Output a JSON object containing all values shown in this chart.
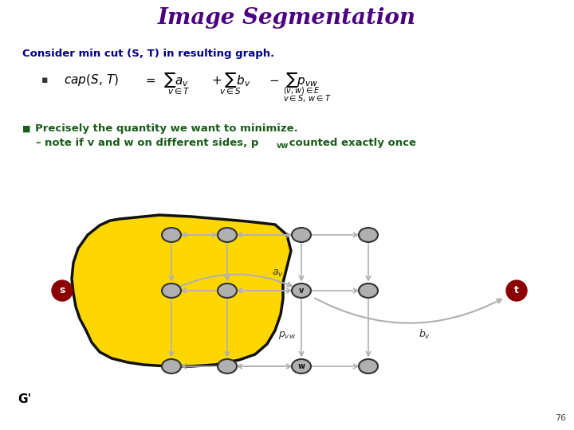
{
  "title": "Image Segmentation",
  "title_color": "#4B0082",
  "title_fontsize": 20,
  "bg_color": "#ffffff",
  "consider_text": "Consider min cut (S, T) in resulting graph.",
  "consider_color": "#00008B",
  "bullet_color": "#1a5c1a",
  "sub_color": "#1a5c1a",
  "page_num": "76",
  "yellow_blob_color": "#FFD700",
  "node_fill": "#b0b0b0",
  "node_edge": "#333333",
  "s_color": "#8B0000",
  "t_color": "#8B0000",
  "edge_color": "#b0b0b0",
  "label_color": "#333333"
}
